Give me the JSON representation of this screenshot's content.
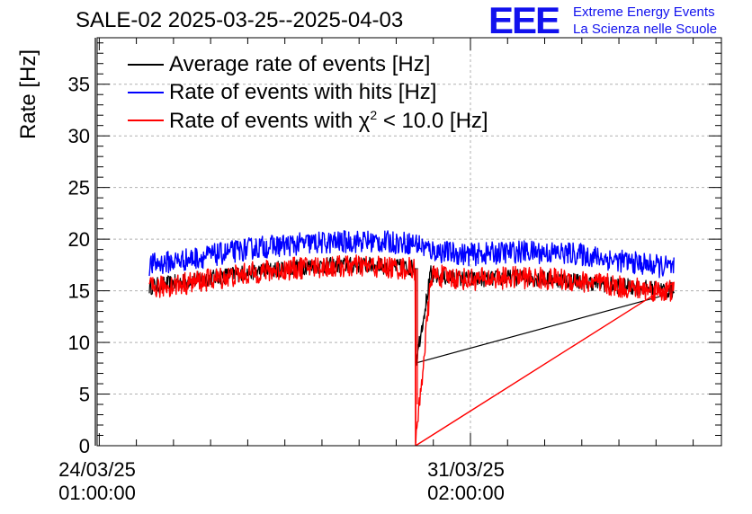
{
  "header": {
    "title": "SALE-02 2025-03-25--2025-04-03",
    "logo_letters": "EEE",
    "logo_line1": "Extreme Energy Events",
    "logo_line2": "La Scienza nelle Scuole"
  },
  "colors": {
    "average": "#000000",
    "hits": "#0000ff",
    "chi2": "#ff0000",
    "grid": "#b0b0b0",
    "logo": "#1111ee"
  },
  "chart_data": {
    "type": "line",
    "title": "SALE-02 2025-03-25--2025-04-03",
    "ylabel": "Rate [Hz]",
    "xlabel": "",
    "ylim": [
      0,
      39.5
    ],
    "yticks": [
      0,
      5,
      10,
      15,
      20,
      25,
      30,
      35
    ],
    "xticks": [
      {
        "date": "24/03/25",
        "time": "01:00:00",
        "t_days": 0
      },
      {
        "date": "31/03/25",
        "time": "02:00:00",
        "t_days": 7.04
      }
    ],
    "xlim_days": [
      -0.04,
      11.8
    ],
    "grid": true,
    "legend_position": "top-left",
    "series": [
      {
        "name": "Average rate of events [Hz]",
        "key": "average",
        "t_days": [
          0.95,
          2.0,
          3.0,
          4.0,
          5.0,
          6.0,
          6.0,
          6.3,
          6.3,
          7.0,
          8.0,
          9.0,
          10.0,
          10.9
        ],
        "values": [
          15.4,
          16.2,
          16.9,
          17.4,
          17.5,
          17.2,
          8.0,
          17.0,
          16.4,
          16.1,
          16.3,
          16.0,
          15.4,
          15.0
        ]
      },
      {
        "name": "Rate of events with hits [Hz]",
        "key": "hits",
        "t_days": [
          0.95,
          2.0,
          3.0,
          4.0,
          5.0,
          6.0,
          6.3,
          7.0,
          8.0,
          9.0,
          10.0,
          10.9
        ],
        "values": [
          17.5,
          18.3,
          19.2,
          19.6,
          19.8,
          19.6,
          18.9,
          18.5,
          18.8,
          18.6,
          17.8,
          17.2
        ]
      },
      {
        "name": "Rate of events with χ² < 10.0 [Hz]",
        "key": "chi2",
        "t_days": [
          0.95,
          2.0,
          3.0,
          4.0,
          5.0,
          6.0,
          6.0,
          6.3,
          7.0,
          8.0,
          9.0,
          10.0,
          10.9
        ],
        "values": [
          15.2,
          16.0,
          16.8,
          17.3,
          17.4,
          17.1,
          0,
          16.5,
          16.1,
          16.3,
          16.0,
          15.3,
          14.9
        ]
      }
    ]
  },
  "legend": {
    "item1": "Average rate of events [Hz]",
    "item2": "Rate of events with hits [Hz]",
    "item3_prefix": "Rate of events with χ",
    "item3_sup": "2",
    "item3_suffix": " < 10.0 [Hz]"
  },
  "xaxis": {
    "tick1_date": "24/03/25",
    "tick1_time": "01:00:00",
    "tick2_date": "31/03/25",
    "tick2_time": "02:00:00"
  }
}
